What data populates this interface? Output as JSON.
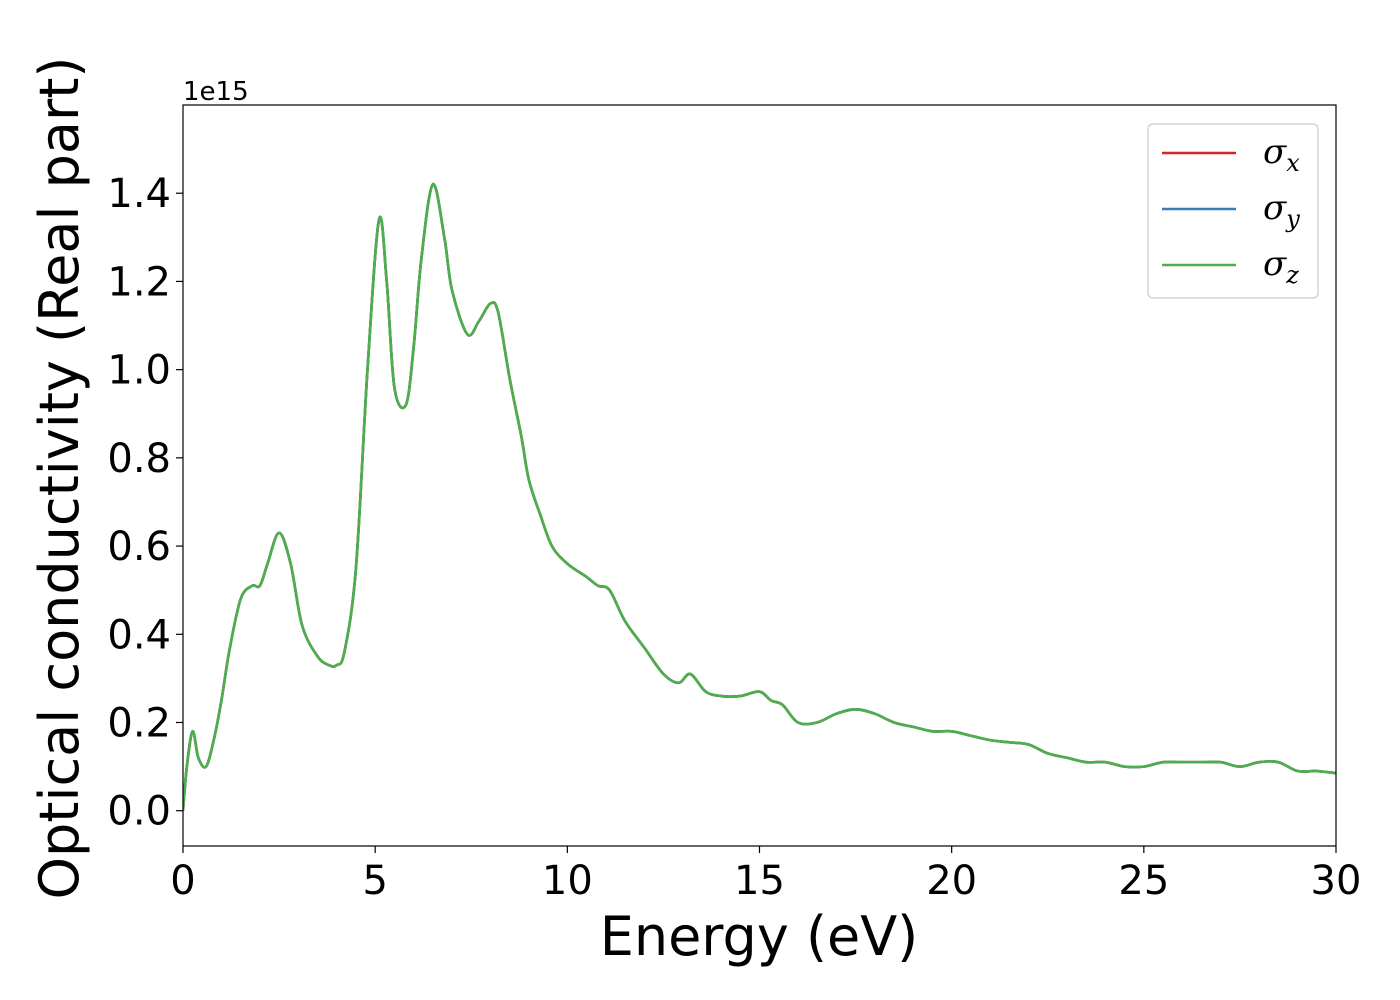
{
  "chart_data": {
    "type": "line",
    "xlabel": "Energy (eV)",
    "ylabel": "Optical conductivity (Real part)",
    "y_offset_text": "1e15",
    "xlim": [
      0,
      30
    ],
    "ylim": [
      -0.08,
      1.6
    ],
    "y_scale_factor": 1000000000000000.0,
    "grid": false,
    "legend_position": "top-right",
    "x_ticks": [
      0,
      5,
      10,
      15,
      20,
      25,
      30
    ],
    "x_tick_labels": [
      "0",
      "5",
      "10",
      "15",
      "20",
      "25",
      "30"
    ],
    "y_ticks": [
      0.0,
      0.2,
      0.4,
      0.6,
      0.8,
      1.0,
      1.2,
      1.4
    ],
    "y_tick_labels": [
      "0.0",
      "0.2",
      "0.4",
      "0.6",
      "0.8",
      "1.0",
      "1.2",
      "1.4"
    ],
    "x": [
      0,
      0.1,
      0.25,
      0.4,
      0.6,
      0.8,
      1.0,
      1.2,
      1.5,
      1.8,
      2.0,
      2.2,
      2.5,
      2.8,
      3.1,
      3.5,
      3.8,
      4.0,
      4.2,
      4.5,
      4.8,
      5.1,
      5.3,
      5.5,
      5.8,
      6.0,
      6.2,
      6.5,
      6.8,
      7.0,
      7.4,
      7.7,
      8.0,
      8.2,
      8.5,
      8.8,
      9.0,
      9.3,
      9.6,
      10.0,
      10.5,
      10.8,
      11.1,
      11.5,
      12.0,
      12.5,
      12.9,
      13.2,
      13.6,
      14.0,
      14.5,
      15.0,
      15.3,
      15.6,
      16.0,
      16.5,
      17.0,
      17.5,
      18.0,
      18.5,
      19.0,
      19.5,
      20.0,
      20.5,
      21.0,
      21.5,
      22.0,
      22.5,
      23.0,
      23.5,
      24.0,
      24.5,
      25.0,
      25.5,
      26.0,
      26.5,
      27.0,
      27.5,
      28.0,
      28.5,
      29.0,
      29.5,
      30.0
    ],
    "series": [
      {
        "name": "σx",
        "label_main": "σ",
        "label_sub": "x",
        "color": "#d62728",
        "values": [
          0.0,
          0.1,
          0.18,
          0.12,
          0.1,
          0.16,
          0.25,
          0.36,
          0.48,
          0.51,
          0.51,
          0.56,
          0.63,
          0.56,
          0.42,
          0.35,
          0.33,
          0.33,
          0.36,
          0.55,
          1.0,
          1.34,
          1.2,
          0.96,
          0.92,
          1.05,
          1.25,
          1.42,
          1.3,
          1.18,
          1.08,
          1.11,
          1.15,
          1.13,
          0.98,
          0.85,
          0.75,
          0.67,
          0.6,
          0.56,
          0.53,
          0.51,
          0.5,
          0.43,
          0.37,
          0.31,
          0.29,
          0.31,
          0.27,
          0.26,
          0.26,
          0.27,
          0.25,
          0.24,
          0.2,
          0.2,
          0.22,
          0.23,
          0.22,
          0.2,
          0.19,
          0.18,
          0.18,
          0.17,
          0.16,
          0.155,
          0.15,
          0.13,
          0.12,
          0.11,
          0.11,
          0.1,
          0.1,
          0.11,
          0.11,
          0.11,
          0.11,
          0.1,
          0.11,
          0.11,
          0.09,
          0.09,
          0.085
        ]
      },
      {
        "name": "σy",
        "label_main": "σ",
        "label_sub": "y",
        "color": "#3a7bb8",
        "values": [
          0.0,
          0.1,
          0.18,
          0.12,
          0.1,
          0.16,
          0.25,
          0.36,
          0.48,
          0.51,
          0.51,
          0.56,
          0.63,
          0.56,
          0.42,
          0.35,
          0.33,
          0.33,
          0.36,
          0.55,
          1.0,
          1.34,
          1.2,
          0.96,
          0.92,
          1.05,
          1.25,
          1.42,
          1.3,
          1.18,
          1.08,
          1.11,
          1.15,
          1.13,
          0.98,
          0.85,
          0.75,
          0.67,
          0.6,
          0.56,
          0.53,
          0.51,
          0.5,
          0.43,
          0.37,
          0.31,
          0.29,
          0.31,
          0.27,
          0.26,
          0.26,
          0.27,
          0.25,
          0.24,
          0.2,
          0.2,
          0.22,
          0.23,
          0.22,
          0.2,
          0.19,
          0.18,
          0.18,
          0.17,
          0.16,
          0.155,
          0.15,
          0.13,
          0.12,
          0.11,
          0.11,
          0.1,
          0.1,
          0.11,
          0.11,
          0.11,
          0.11,
          0.1,
          0.11,
          0.11,
          0.09,
          0.09,
          0.085
        ]
      },
      {
        "name": "σz",
        "label_main": "σ",
        "label_sub": "z",
        "color": "#4daf4a",
        "values": [
          0.0,
          0.1,
          0.18,
          0.12,
          0.1,
          0.16,
          0.25,
          0.36,
          0.48,
          0.51,
          0.51,
          0.56,
          0.63,
          0.56,
          0.42,
          0.35,
          0.33,
          0.33,
          0.36,
          0.55,
          1.0,
          1.34,
          1.2,
          0.96,
          0.92,
          1.05,
          1.25,
          1.42,
          1.3,
          1.18,
          1.08,
          1.11,
          1.15,
          1.13,
          0.98,
          0.85,
          0.75,
          0.67,
          0.6,
          0.56,
          0.53,
          0.51,
          0.5,
          0.43,
          0.37,
          0.31,
          0.29,
          0.31,
          0.27,
          0.26,
          0.26,
          0.27,
          0.25,
          0.24,
          0.2,
          0.2,
          0.22,
          0.23,
          0.22,
          0.2,
          0.19,
          0.18,
          0.18,
          0.17,
          0.16,
          0.155,
          0.15,
          0.13,
          0.12,
          0.11,
          0.11,
          0.1,
          0.1,
          0.11,
          0.11,
          0.11,
          0.11,
          0.1,
          0.11,
          0.11,
          0.09,
          0.09,
          0.085
        ]
      }
    ]
  }
}
